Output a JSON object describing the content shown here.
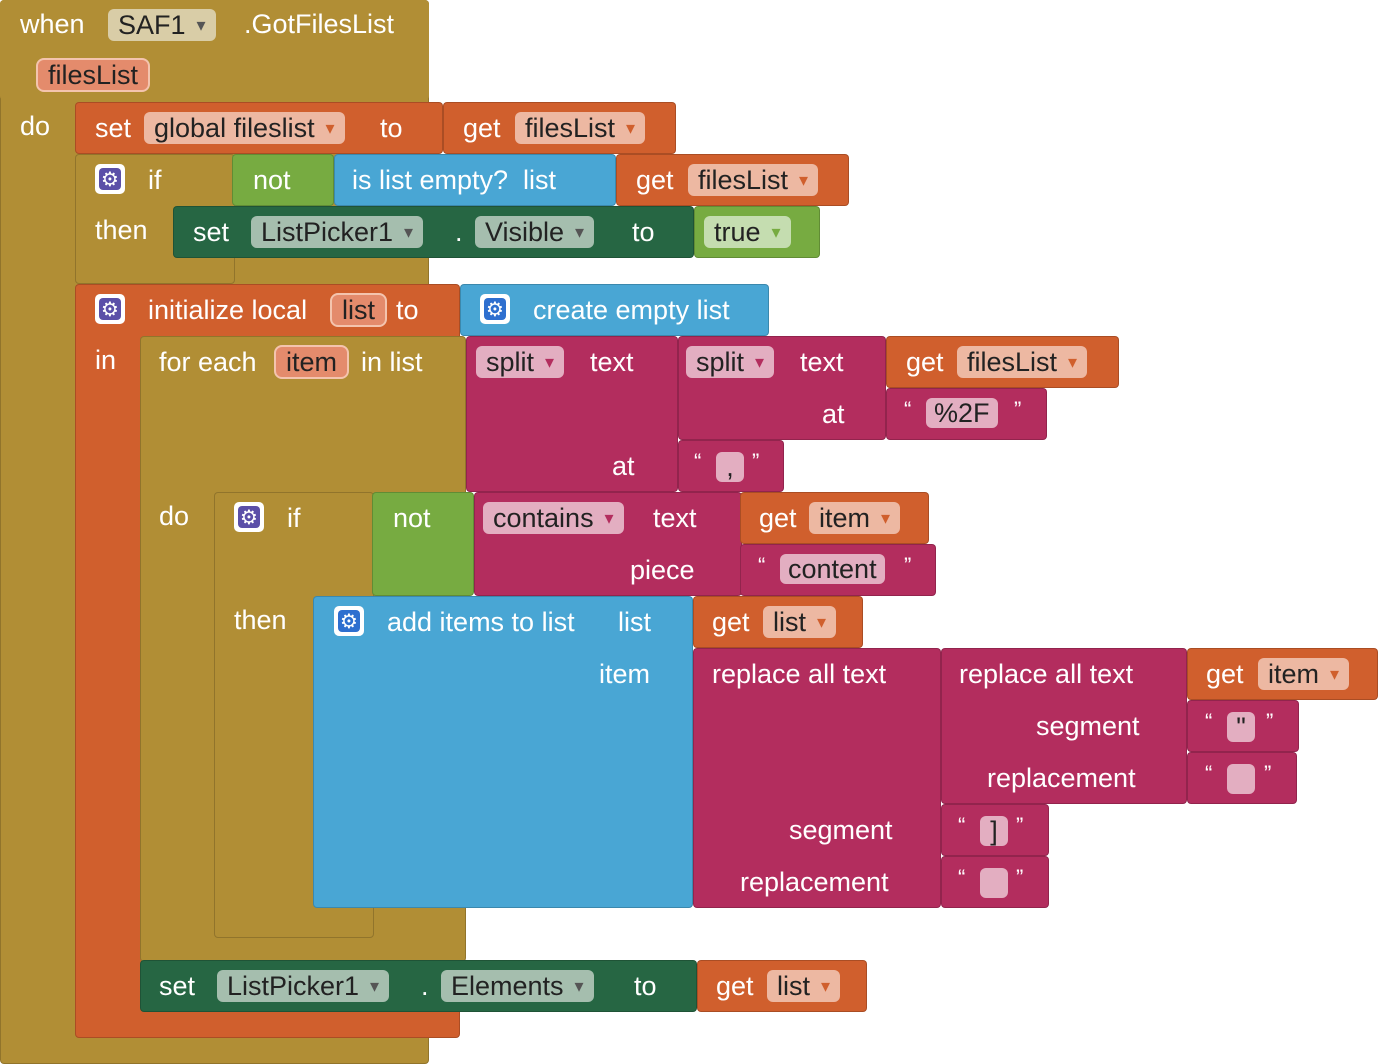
{
  "event": {
    "when": "when",
    "component": "SAF1",
    "event_name": ".GotFilesList",
    "param": "filesList",
    "do": "do"
  },
  "set_global": {
    "set": "set",
    "var": "global fileslist",
    "to": "to",
    "get": "get",
    "get_var": "filesList"
  },
  "if1": {
    "if": "if",
    "then": "then",
    "not": "not",
    "is_list_empty": "is list empty?  list",
    "get": "get",
    "get_var": "filesList",
    "set": "set",
    "component": "ListPicker1",
    "dot": ".",
    "prop": "Visible",
    "to": "to",
    "value": "true"
  },
  "init_local": {
    "label": "initialize local",
    "var": "list",
    "to": "to",
    "in": "in",
    "create": "create empty list"
  },
  "foreach": {
    "for_each": "for each",
    "var": "item",
    "in_list": "in list",
    "do": "do"
  },
  "split_outer": {
    "func": "split",
    "text": "text",
    "at": "at",
    "at_value": ","
  },
  "split_inner": {
    "func": "split",
    "text": "text",
    "get": "get",
    "get_var": "filesList",
    "at": "at",
    "at_value": "%2F"
  },
  "if2": {
    "if": "if",
    "then": "then",
    "not": "not",
    "contains": "contains",
    "text": "text",
    "get": "get",
    "get_var": "item",
    "piece": "piece",
    "piece_value": "content"
  },
  "add_items": {
    "label": "add items to list",
    "list": "list",
    "get": "get",
    "get_var": "list",
    "item": "item"
  },
  "replace_outer": {
    "label": "replace all text",
    "segment": "segment",
    "segment_value": "]",
    "replacement": "replacement",
    "replacement_value": ""
  },
  "replace_inner": {
    "label": "replace all text",
    "get": "get",
    "get_var": "item",
    "segment": "segment",
    "segment_value": "\"",
    "replacement": "replacement",
    "replacement_value": ""
  },
  "set_elements": {
    "set": "set",
    "component": "ListPicker1",
    "dot": ".",
    "prop": "Elements",
    "to": "to",
    "get": "get",
    "get_var": "list"
  },
  "quotes": {
    "open": "“",
    "close": "”"
  }
}
